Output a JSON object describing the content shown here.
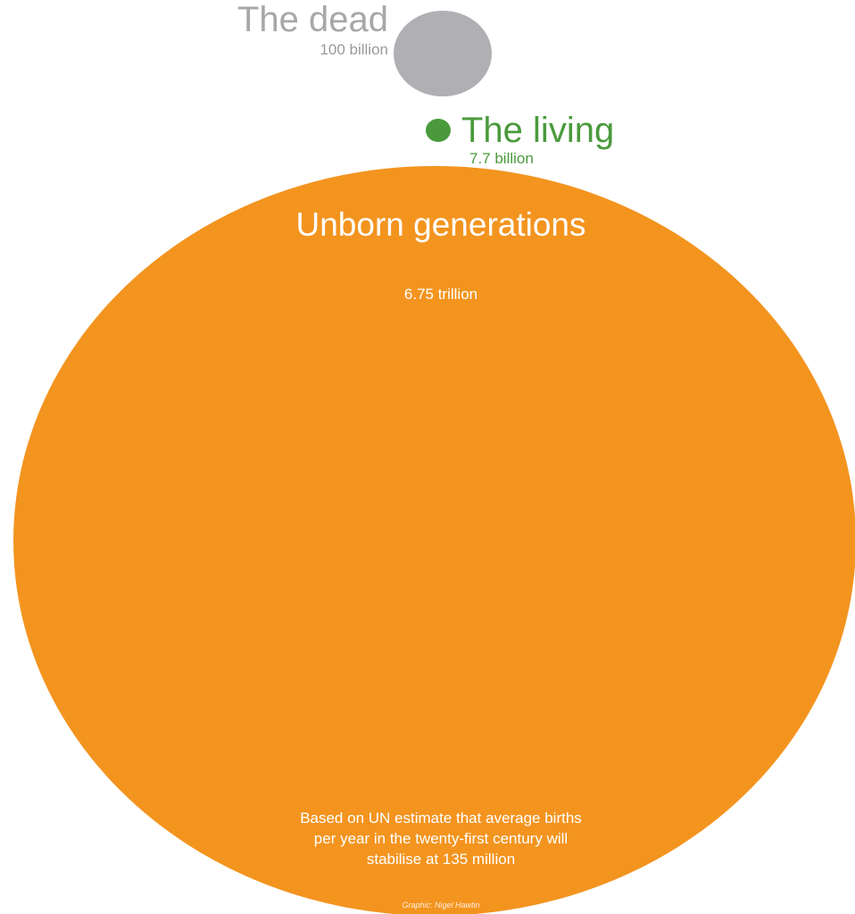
{
  "chart_data": {
    "type": "bubble",
    "series": [
      {
        "name": "The dead",
        "value_label": "100 billion",
        "value": 100000000000,
        "color": "#b0b0b4"
      },
      {
        "name": "The living",
        "value_label": "7.7 billion",
        "value": 7700000000,
        "color": "#4a9a3c"
      },
      {
        "name": "Unborn generations",
        "value_label": "6.75 trillion",
        "value": 6750000000000,
        "color": "#f3941f"
      }
    ],
    "note": "Based on UN estimate that average births per year in the twenty-first century will stabilise at 135 million",
    "credit": "Graphic: Nigel Hawtin"
  }
}
